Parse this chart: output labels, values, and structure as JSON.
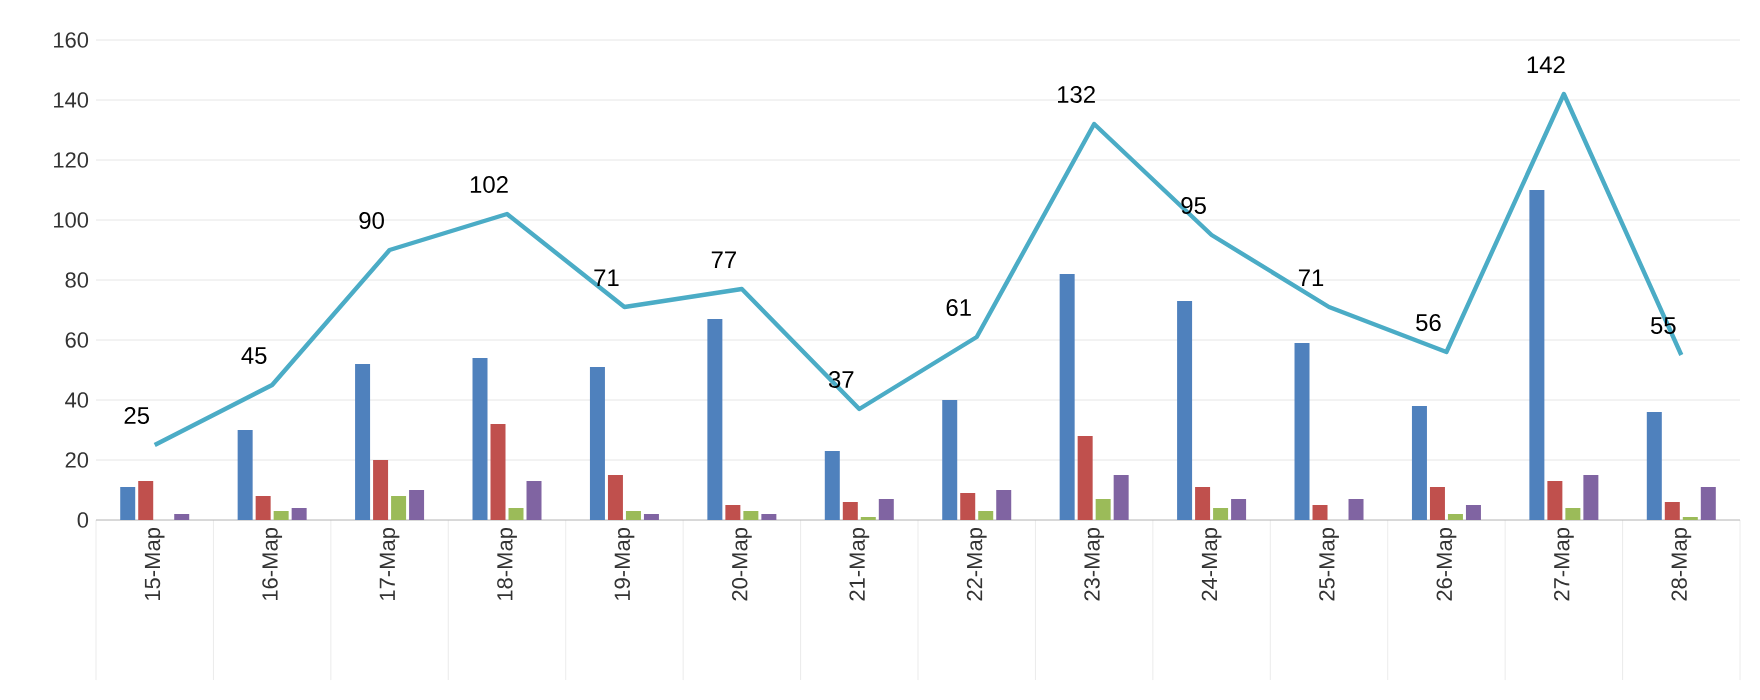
{
  "chart_data": {
    "type": "bar",
    "categories": [
      "15-Мар",
      "16-Мар",
      "17-Мар",
      "18-Мар",
      "19-Мар",
      "20-Мар",
      "21-Мар",
      "22-Мар",
      "23-Мар",
      "24-Мар",
      "25-Мар",
      "26-Мар",
      "27-Мар",
      "28-Мар"
    ],
    "series": [
      {
        "color": "#4f81bd",
        "values": [
          11,
          30,
          52,
          54,
          51,
          67,
          23,
          40,
          82,
          73,
          59,
          38,
          110,
          36
        ]
      },
      {
        "color": "#c0504d",
        "values": [
          13,
          8,
          20,
          32,
          15,
          5,
          6,
          9,
          28,
          11,
          5,
          11,
          13,
          6
        ]
      },
      {
        "color": "#9bbb59",
        "values": [
          0,
          3,
          8,
          4,
          3,
          3,
          1,
          3,
          7,
          4,
          0,
          2,
          4,
          1
        ]
      },
      {
        "color": "#8064a2",
        "values": [
          2,
          4,
          10,
          13,
          2,
          2,
          7,
          10,
          15,
          7,
          7,
          5,
          15,
          11
        ]
      },
      {
        "type": "line",
        "color": "#4bacc6",
        "values": [
          25,
          45,
          90,
          102,
          71,
          77,
          37,
          61,
          132,
          95,
          71,
          56,
          142,
          55
        ],
        "value_labels": [
          "25",
          "45",
          "90",
          "102",
          "71",
          "77",
          "37",
          "61",
          "132",
          "95",
          "71",
          "56",
          "142",
          "55"
        ]
      }
    ],
    "ylim": [
      0,
      160
    ],
    "yticks": [
      0,
      20,
      40,
      60,
      80,
      100,
      120,
      140,
      160
    ],
    "grid": "y"
  }
}
